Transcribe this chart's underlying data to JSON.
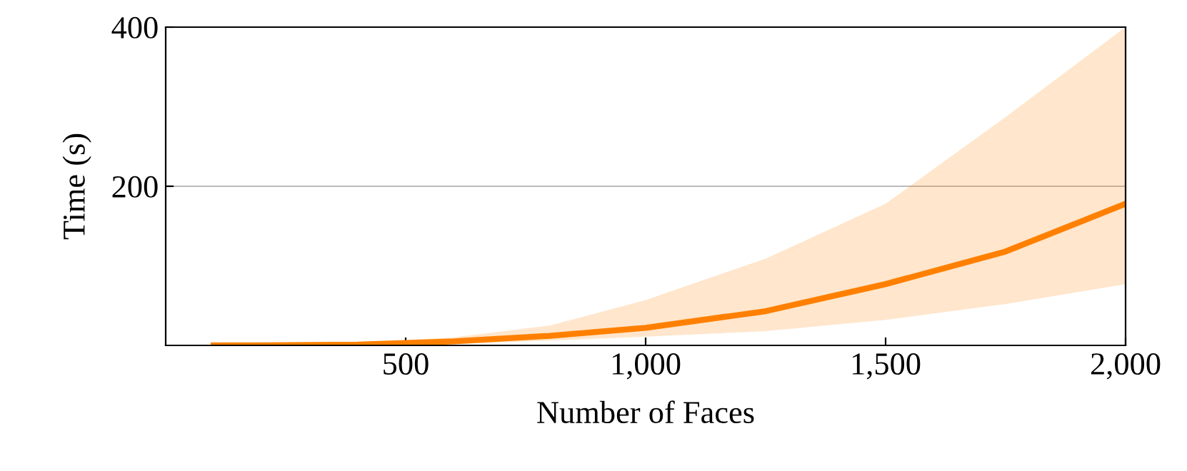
{
  "chart_data": {
    "type": "line",
    "xlabel": "Number of Faces",
    "ylabel": "Time (s)",
    "xlim": [
      0,
      2000
    ],
    "ylim": [
      0,
      400
    ],
    "xticks": [
      500,
      {
        "value": 1000,
        "label": "1,000"
      },
      {
        "value": 1500,
        "label": "1,500"
      },
      {
        "value": 2000,
        "label": "2,000"
      }
    ],
    "yticks": [
      200,
      400
    ],
    "grid": "y",
    "marker": "none",
    "line_style": "solid",
    "series": [
      {
        "color": "#ff8000",
        "x": [
          100,
          200,
          400,
          600,
          800,
          1000,
          1250,
          1500,
          1750,
          2000
        ],
        "values": [
          0,
          0,
          1,
          5,
          12,
          22,
          43,
          77,
          118,
          178
        ],
        "lower": [
          0,
          0,
          0,
          2,
          6,
          11,
          18,
          32,
          52,
          77
        ],
        "upper": [
          0,
          1,
          3,
          10,
          25,
          57,
          109,
          178,
          287,
          400
        ]
      }
    ]
  }
}
